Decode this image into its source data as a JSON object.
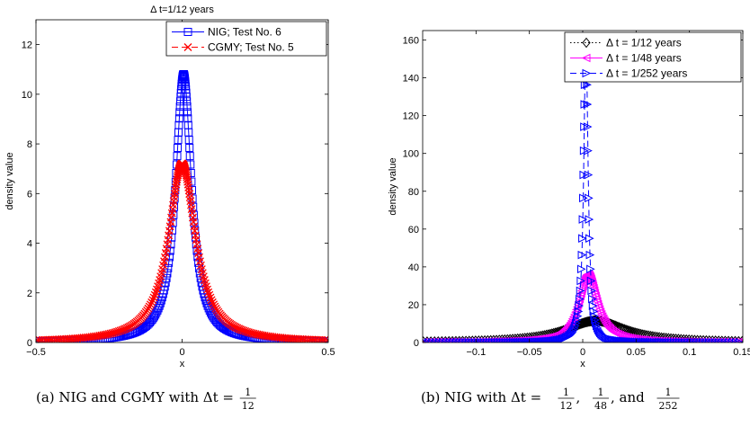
{
  "chart_data": [
    {
      "type": "line",
      "title": "Δ t=1/12 years",
      "xlabel": "x",
      "ylabel": "density value",
      "xlim": [
        -0.5,
        0.5
      ],
      "ylim": [
        0,
        13
      ],
      "xticks": [
        "-0.5",
        "0",
        "0.5"
      ],
      "yticks": [
        "0",
        "2",
        "4",
        "6",
        "8",
        "10",
        "12"
      ],
      "legend": "top-right",
      "series": [
        {
          "name": "NIG; Test No. 6",
          "color": "#0000ff",
          "marker": "square",
          "line": "solid",
          "peak_x": 0.005,
          "peak_y": 10.8,
          "scale": 0.033
        },
        {
          "name": "CGMY; Test No. 5",
          "color": "#ff0000",
          "marker": "x",
          "line": "dashed",
          "peak_x": 0.0,
          "peak_y": 7.2,
          "scale": 0.056
        }
      ],
      "caption": "(a) NIG and CGMY with Δt = 1/12",
      "caption_prefix": "(a) NIG and CGMY with Δt = ",
      "caption_fracs": [
        [
          "1",
          "12"
        ]
      ],
      "caption_sep": "",
      "caption_last_sep": ""
    },
    {
      "type": "line",
      "title": "",
      "xlabel": "x",
      "ylabel": "density value",
      "xlim": [
        -0.15,
        0.15
      ],
      "ylim": [
        0,
        165
      ],
      "xticks": [
        "-0.1",
        "-0.05",
        "0",
        "0.05",
        "0.1",
        "0.15"
      ],
      "yticks": [
        "0",
        "20",
        "40",
        "60",
        "80",
        "100",
        "120",
        "140",
        "160"
      ],
      "legend": "top-right",
      "series": [
        {
          "name": "Δ t = 1/12 years",
          "color": "#000000",
          "marker": "diamond",
          "line": "dotted",
          "peak_x": 0.012,
          "peak_y": 11.5,
          "scale": 0.034
        },
        {
          "name": "Δ t = 1/48 years",
          "color": "#ff00ff",
          "marker": "triangle-left",
          "line": "solid",
          "peak_x": 0.005,
          "peak_y": 36,
          "scale": 0.0105
        },
        {
          "name": "Δ t = 1/252 years",
          "color": "#0000ff",
          "marker": "triangle-right",
          "line": "dashed",
          "peak_x": 0.003,
          "peak_y": 162,
          "scale": 0.0024
        }
      ],
      "caption": "(b) NIG with Δt = 1/12, 1/48, and 1/252",
      "caption_prefix": "(b) NIG with Δt = ",
      "caption_fracs": [
        [
          "1",
          "12"
        ],
        [
          "1",
          "48"
        ],
        [
          "1",
          "252"
        ]
      ],
      "caption_sep": ", ",
      "caption_last_sep": ", and "
    }
  ]
}
